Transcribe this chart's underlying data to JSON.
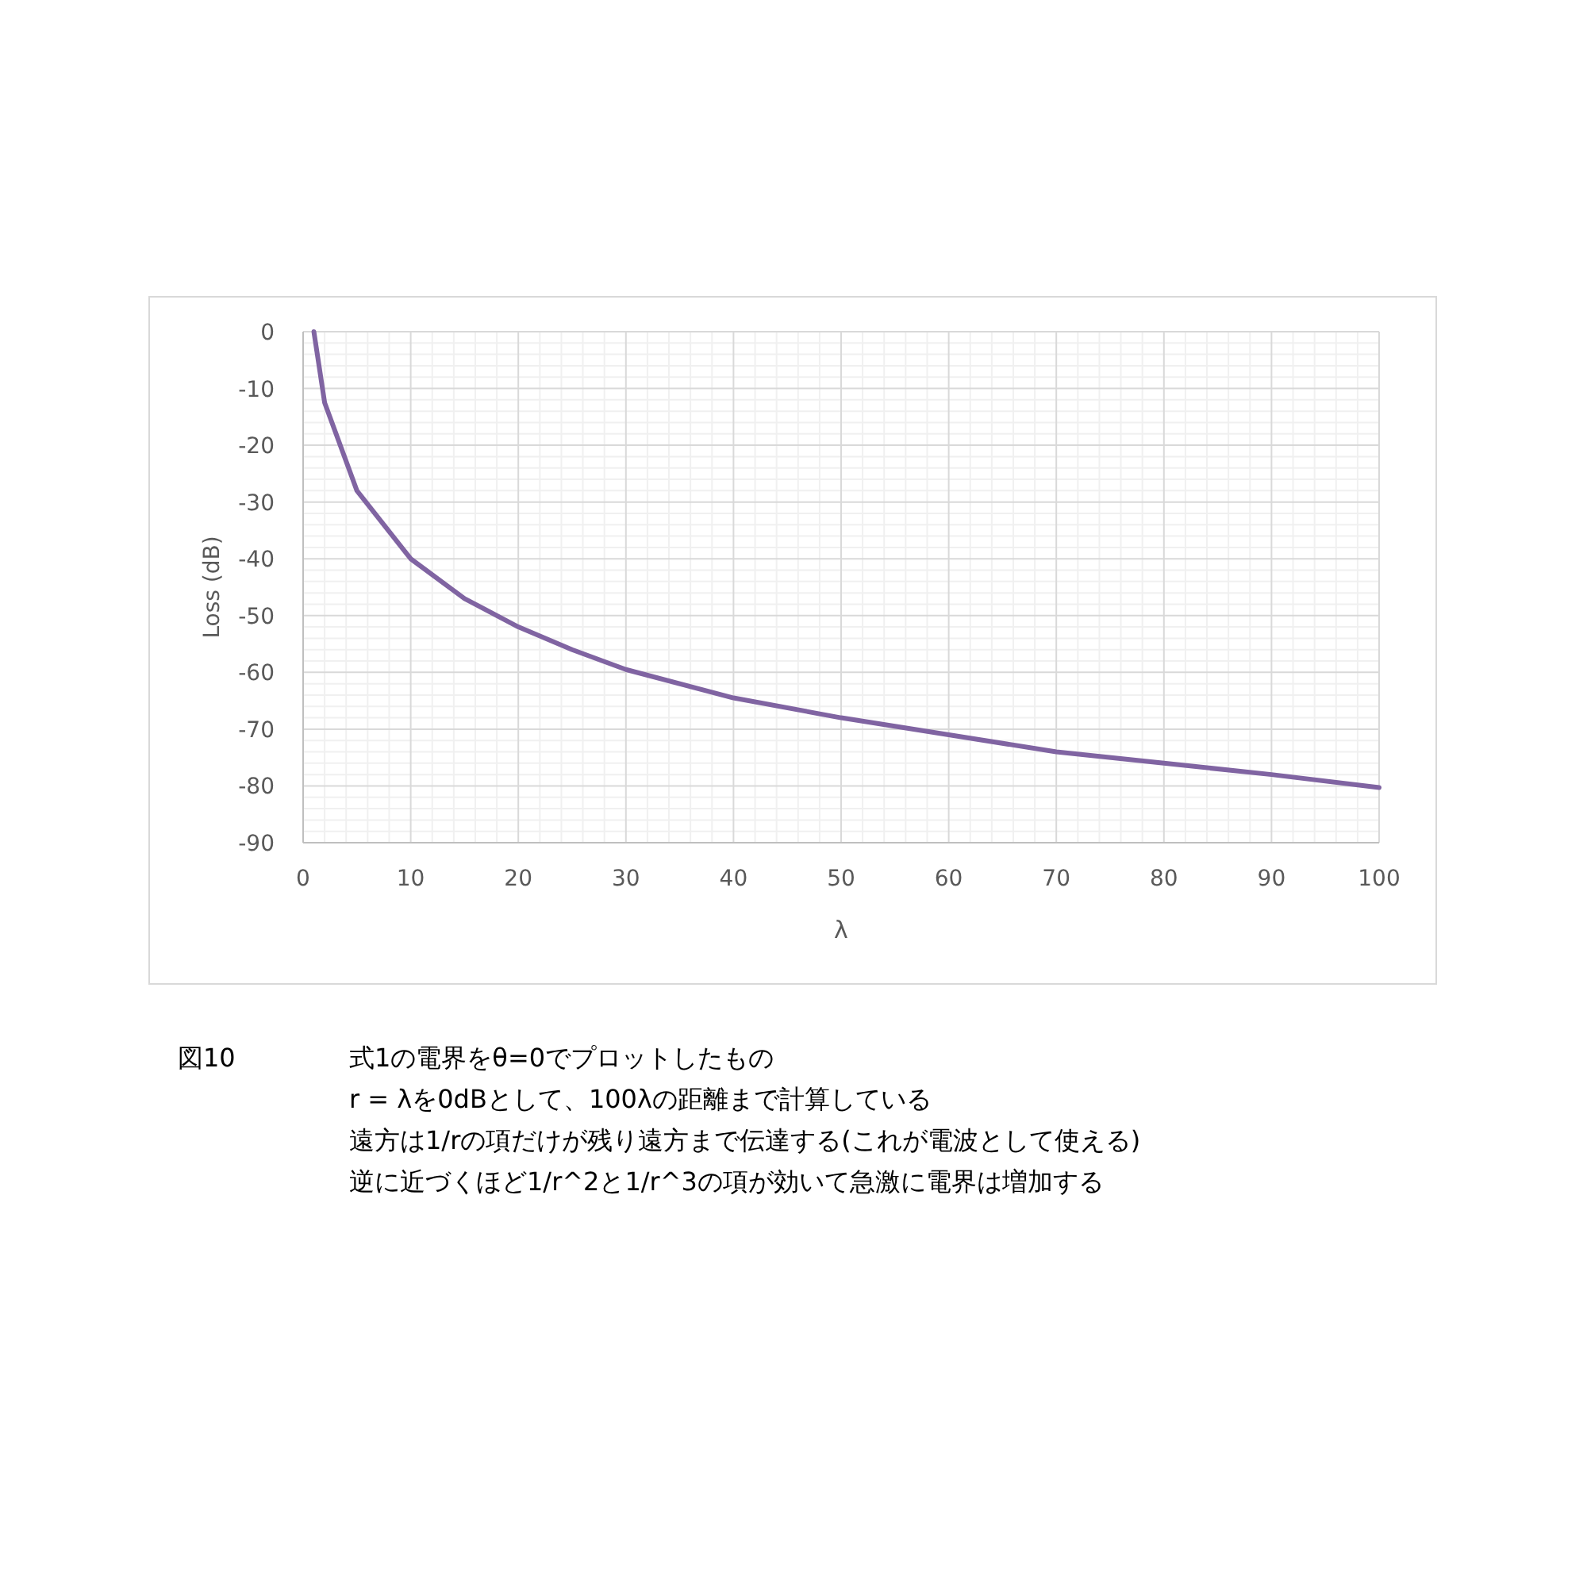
{
  "chart_data": {
    "type": "line",
    "xlabel": "λ",
    "ylabel": "Loss (dB)",
    "x": [
      1,
      2,
      5,
      10,
      15,
      20,
      25,
      30,
      40,
      50,
      60,
      70,
      80,
      90,
      100
    ],
    "series": [
      {
        "color": "#8064a2",
        "values": [
          0,
          -12.5,
          -28,
          -40,
          -47,
          -52,
          -56,
          -59.5,
          -64.5,
          -68,
          -71,
          -74,
          -76,
          -78,
          -80.3
        ]
      }
    ],
    "xlim": [
      0,
      100
    ],
    "xticks": [
      0,
      10,
      20,
      30,
      40,
      50,
      60,
      70,
      80,
      90,
      100
    ],
    "ylim": [
      -90,
      0
    ],
    "yticks": [
      0,
      -10,
      -20,
      -30,
      -40,
      -50,
      -60,
      -70,
      -80,
      -90
    ],
    "grid": true,
    "marker": "none",
    "line_style": "solid",
    "annotations": [
      "図10",
      "式1の電界をθ=0でプロットしたもの",
      "r = λを0dBとして、100λの距離まで計算している",
      "遠方は1/rの項だけが残り遠方まで伝達する(これが電波として使える)",
      "逆に近づくほど1/r^2と1/r^3の項が効いて急激に電界は増加する"
    ]
  }
}
